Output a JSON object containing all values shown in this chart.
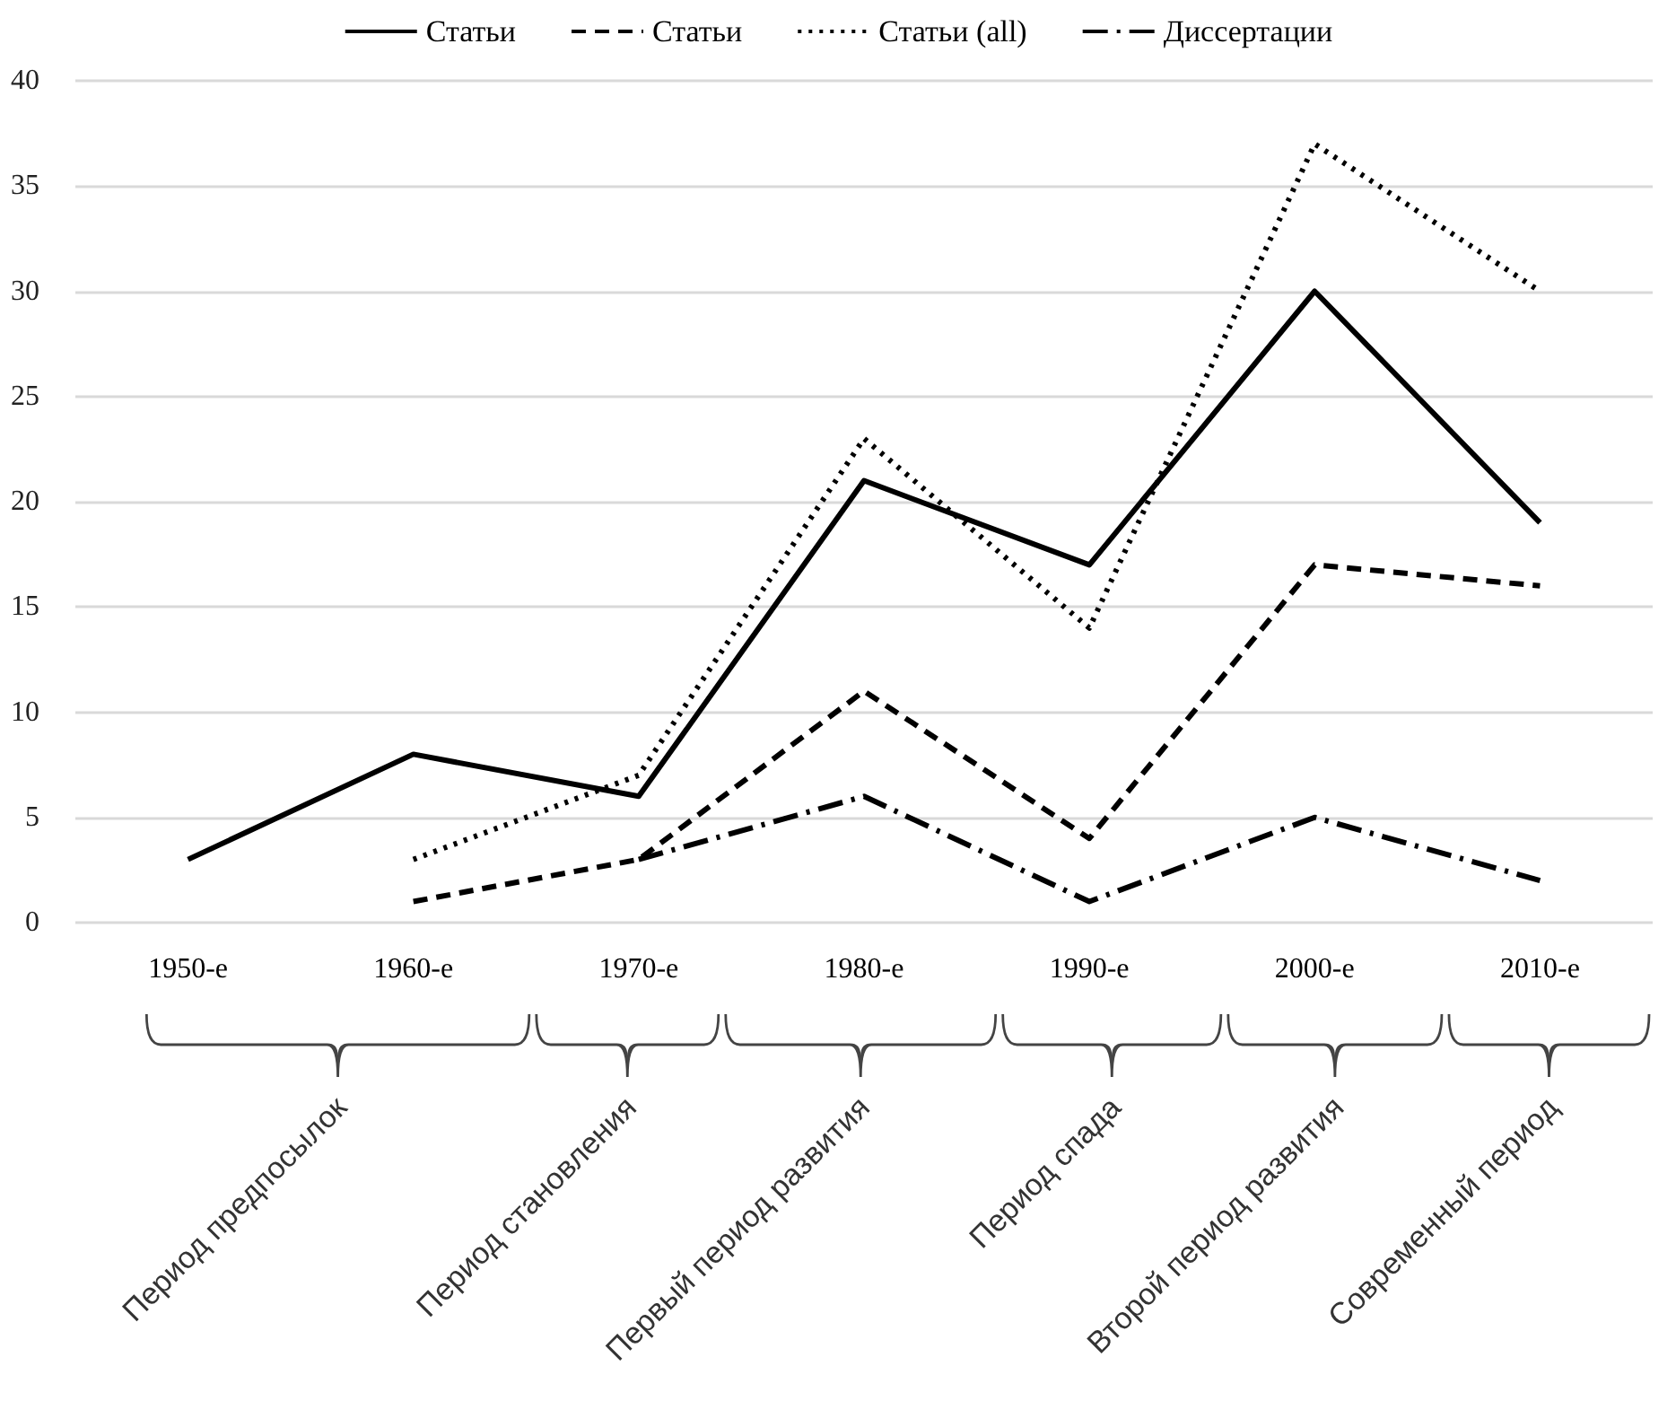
{
  "chart_data": {
    "type": "line",
    "categories": [
      "1950-е",
      "1960-е",
      "1970-е",
      "1980-е",
      "1990-е",
      "2000-е",
      "2010-е"
    ],
    "series": [
      {
        "name": "Статьи",
        "color": "#000000",
        "line_style": "solid",
        "values": [
          3,
          8,
          6,
          21,
          17,
          30,
          19
        ]
      },
      {
        "name": "Статьи",
        "color": "#000000",
        "line_style": "dashed",
        "values": [
          null,
          1,
          3,
          11,
          4,
          17,
          16
        ]
      },
      {
        "name": "Статьи (all)",
        "color": "#000000",
        "line_style": "dotted",
        "values": [
          null,
          3,
          7,
          23,
          14,
          37,
          30
        ]
      },
      {
        "name": "Диссертации",
        "color": "#000000",
        "line_style": "dashdot",
        "values": [
          null,
          null,
          3,
          6,
          1,
          5,
          2
        ]
      }
    ],
    "ylim": [
      0,
      40
    ],
    "yticks": [
      0,
      5,
      10,
      15,
      20,
      25,
      30,
      35,
      40
    ],
    "grid": "y",
    "legend": "top",
    "marker": "none",
    "annotations": [
      "Период предпосылок",
      "Период становления",
      "Первый период развития",
      "Период спада",
      "Второй период развития",
      "Современный период"
    ]
  }
}
